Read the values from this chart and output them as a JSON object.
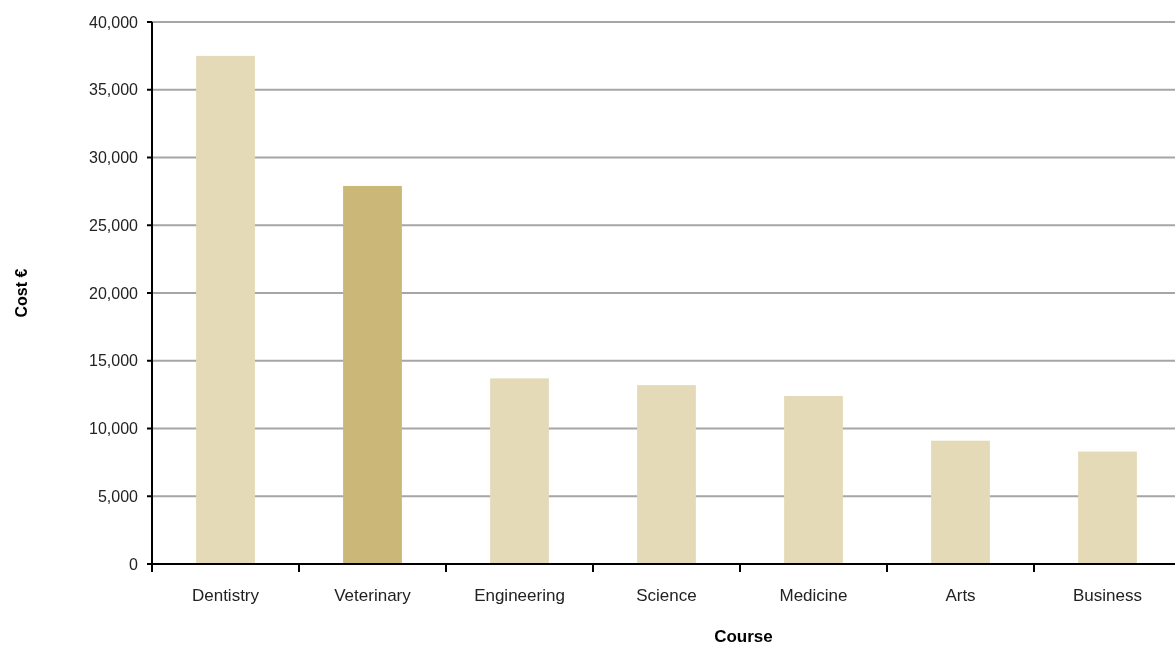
{
  "chart_data": {
    "type": "bar",
    "xlabel": "Course",
    "ylabel": "Cost €",
    "categories": [
      "Dentistry",
      "Veterinary",
      "Engineering",
      "Science",
      "Medicine",
      "Arts",
      "Business"
    ],
    "values": [
      37500,
      27900,
      13700,
      13200,
      12400,
      9100,
      8300
    ],
    "colors": [
      "#e5dab8",
      "#cbb778",
      "#e5dab8",
      "#e5dab8",
      "#e5dab8",
      "#e5dab8",
      "#e5dab8"
    ],
    "ylim": [
      0,
      40000
    ],
    "yticks": [
      {
        "value": 0,
        "label": "0"
      },
      {
        "value": 5000,
        "label": "5,000"
      },
      {
        "value": 10000,
        "label": "10,000"
      },
      {
        "value": 15000,
        "label": "15,000"
      },
      {
        "value": 20000,
        "label": "20,000"
      },
      {
        "value": 25000,
        "label": "25,000"
      },
      {
        "value": 30000,
        "label": "30,000"
      },
      {
        "value": 35000,
        "label": "35,000"
      },
      {
        "value": 40000,
        "label": "40,000"
      }
    ],
    "grid": "y"
  }
}
